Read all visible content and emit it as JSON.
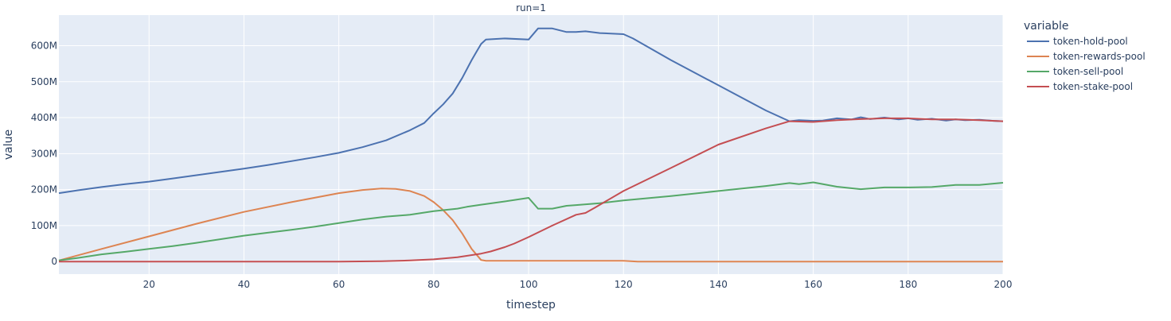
{
  "chart_data": {
    "type": "line",
    "title": "run=1",
    "xlabel": "timestep",
    "ylabel": "value",
    "xlim": [
      1,
      200
    ],
    "ylim": [
      -35000000,
      685000000
    ],
    "x_ticks": [
      20,
      40,
      60,
      80,
      100,
      120,
      140,
      160,
      180,
      200
    ],
    "y_ticks": [
      {
        "value": 0,
        "label": "0"
      },
      {
        "value": 100000000,
        "label": "100M"
      },
      {
        "value": 200000000,
        "label": "200M"
      },
      {
        "value": 300000000,
        "label": "300M"
      },
      {
        "value": 400000000,
        "label": "400M"
      },
      {
        "value": 500000000,
        "label": "500M"
      },
      {
        "value": 600000000,
        "label": "600M"
      }
    ],
    "grid": true,
    "legend": {
      "title": "variable",
      "position": "right"
    },
    "series": [
      {
        "name": "token-hold-pool",
        "color": "#4c72b0",
        "x": [
          1,
          5,
          10,
          15,
          20,
          25,
          30,
          35,
          40,
          45,
          50,
          55,
          60,
          65,
          70,
          75,
          78,
          80,
          82,
          84,
          86,
          88,
          89,
          90,
          91,
          95,
          100,
          102,
          105,
          108,
          110,
          112,
          115,
          120,
          122,
          130,
          140,
          150,
          155,
          157,
          160,
          162,
          165,
          168,
          170,
          172,
          175,
          178,
          180,
          182,
          185,
          188,
          190,
          192,
          195,
          198,
          200
        ],
        "y": [
          190000000,
          198000000,
          207000000,
          215000000,
          222000000,
          231000000,
          240000000,
          249000000,
          258000000,
          268000000,
          279000000,
          290000000,
          302000000,
          318000000,
          337000000,
          365000000,
          385000000,
          412000000,
          437000000,
          467000000,
          510000000,
          560000000,
          583000000,
          605000000,
          617000000,
          620000000,
          617000000,
          648000000,
          648000000,
          638000000,
          638000000,
          640000000,
          635000000,
          632000000,
          620000000,
          560000000,
          490000000,
          420000000,
          390000000,
          393000000,
          391000000,
          392000000,
          398000000,
          395000000,
          401000000,
          396000000,
          400000000,
          395000000,
          398000000,
          394000000,
          397000000,
          392000000,
          395000000,
          393000000,
          394000000,
          391000000,
          390000000
        ]
      },
      {
        "name": "token-rewards-pool",
        "color": "#dd8452",
        "x": [
          1,
          10,
          20,
          30,
          40,
          50,
          60,
          65,
          69,
          72,
          75,
          78,
          80,
          82,
          84,
          86,
          88,
          90,
          91,
          95,
          100,
          110,
          120,
          123,
          130,
          140,
          160,
          180,
          200
        ],
        "y": [
          3000000,
          35000000,
          70000000,
          105000000,
          138000000,
          165000000,
          190000000,
          199000000,
          203000000,
          202000000,
          196000000,
          182000000,
          165000000,
          143000000,
          115000000,
          78000000,
          35000000,
          4000000,
          2000000,
          2000000,
          2000000,
          2000000,
          2000000,
          0,
          0,
          0,
          0,
          0,
          0
        ]
      },
      {
        "name": "token-sell-pool",
        "color": "#55a868",
        "x": [
          1,
          5,
          10,
          15,
          20,
          25,
          30,
          35,
          40,
          45,
          50,
          55,
          60,
          65,
          70,
          75,
          80,
          85,
          87,
          90,
          95,
          100,
          102,
          105,
          108,
          110,
          115,
          120,
          130,
          140,
          150,
          155,
          157,
          160,
          165,
          170,
          175,
          180,
          185,
          190,
          195,
          200
        ],
        "y": [
          3000000,
          10000000,
          20000000,
          27000000,
          35000000,
          43000000,
          52000000,
          62000000,
          72000000,
          80000000,
          88000000,
          97000000,
          107000000,
          117000000,
          125000000,
          130000000,
          140000000,
          147000000,
          152000000,
          158000000,
          167000000,
          177000000,
          147000000,
          147000000,
          155000000,
          157000000,
          162000000,
          170000000,
          182000000,
          196000000,
          210000000,
          218000000,
          215000000,
          220000000,
          208000000,
          201000000,
          206000000,
          206000000,
          207000000,
          213000000,
          213000000,
          219000000
        ]
      },
      {
        "name": "token-stake-pool",
        "color": "#c44e52",
        "x": [
          1,
          20,
          40,
          60,
          69,
          75,
          80,
          85,
          90,
          92,
          95,
          97,
          100,
          105,
          110,
          112,
          114,
          120,
          130,
          140,
          150,
          155,
          160,
          165,
          170,
          175,
          180,
          185,
          190,
          195,
          200
        ],
        "y": [
          0,
          0,
          0,
          0,
          1000000,
          3000000,
          6000000,
          12000000,
          22000000,
          28000000,
          40000000,
          50000000,
          68000000,
          100000000,
          130000000,
          135000000,
          150000000,
          196000000,
          260000000,
          325000000,
          370000000,
          390000000,
          388000000,
          393000000,
          396000000,
          398000000,
          398000000,
          395000000,
          395000000,
          393000000,
          390000000
        ]
      }
    ]
  }
}
